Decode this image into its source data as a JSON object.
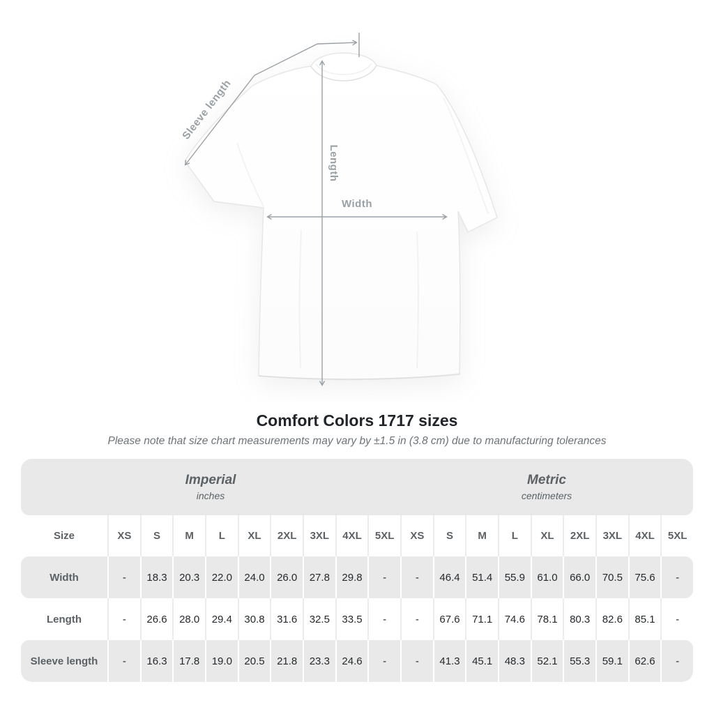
{
  "diagram": {
    "labels": {
      "sleeve_length": "Sleeve length",
      "length": "Length",
      "width": "Width"
    },
    "annotation_color": "#9ba0a5"
  },
  "title": "Comfort Colors 1717 sizes",
  "subtitle": "Please note that size chart measurements may vary by ±1.5 in (3.8 cm) due to manufacturing tolerances",
  "table": {
    "unit_groups": [
      {
        "label": "Imperial",
        "sublabel": "inches"
      },
      {
        "label": "Metric",
        "sublabel": "centimeters"
      }
    ],
    "size_header": "Size",
    "sizes": [
      "XS",
      "S",
      "M",
      "L",
      "XL",
      "2XL",
      "3XL",
      "4XL",
      "5XL"
    ],
    "rows": [
      {
        "label": "Width",
        "imperial": [
          "-",
          "18.3",
          "20.3",
          "22.0",
          "24.0",
          "26.0",
          "27.8",
          "29.8",
          "-"
        ],
        "metric": [
          "-",
          "46.4",
          "51.4",
          "55.9",
          "61.0",
          "66.0",
          "70.5",
          "75.6",
          "-"
        ]
      },
      {
        "label": "Length",
        "imperial": [
          "-",
          "26.6",
          "28.0",
          "29.4",
          "30.8",
          "31.6",
          "32.5",
          "33.5",
          "-"
        ],
        "metric": [
          "-",
          "67.6",
          "71.1",
          "74.6",
          "78.1",
          "80.3",
          "82.6",
          "85.1",
          "-"
        ]
      },
      {
        "label": "Sleeve length",
        "imperial": [
          "-",
          "16.3",
          "17.8",
          "19.0",
          "20.5",
          "21.8",
          "23.3",
          "24.6",
          "-"
        ],
        "metric": [
          "-",
          "41.3",
          "45.1",
          "48.3",
          "52.1",
          "55.3",
          "59.1",
          "62.6",
          "-"
        ]
      }
    ]
  }
}
